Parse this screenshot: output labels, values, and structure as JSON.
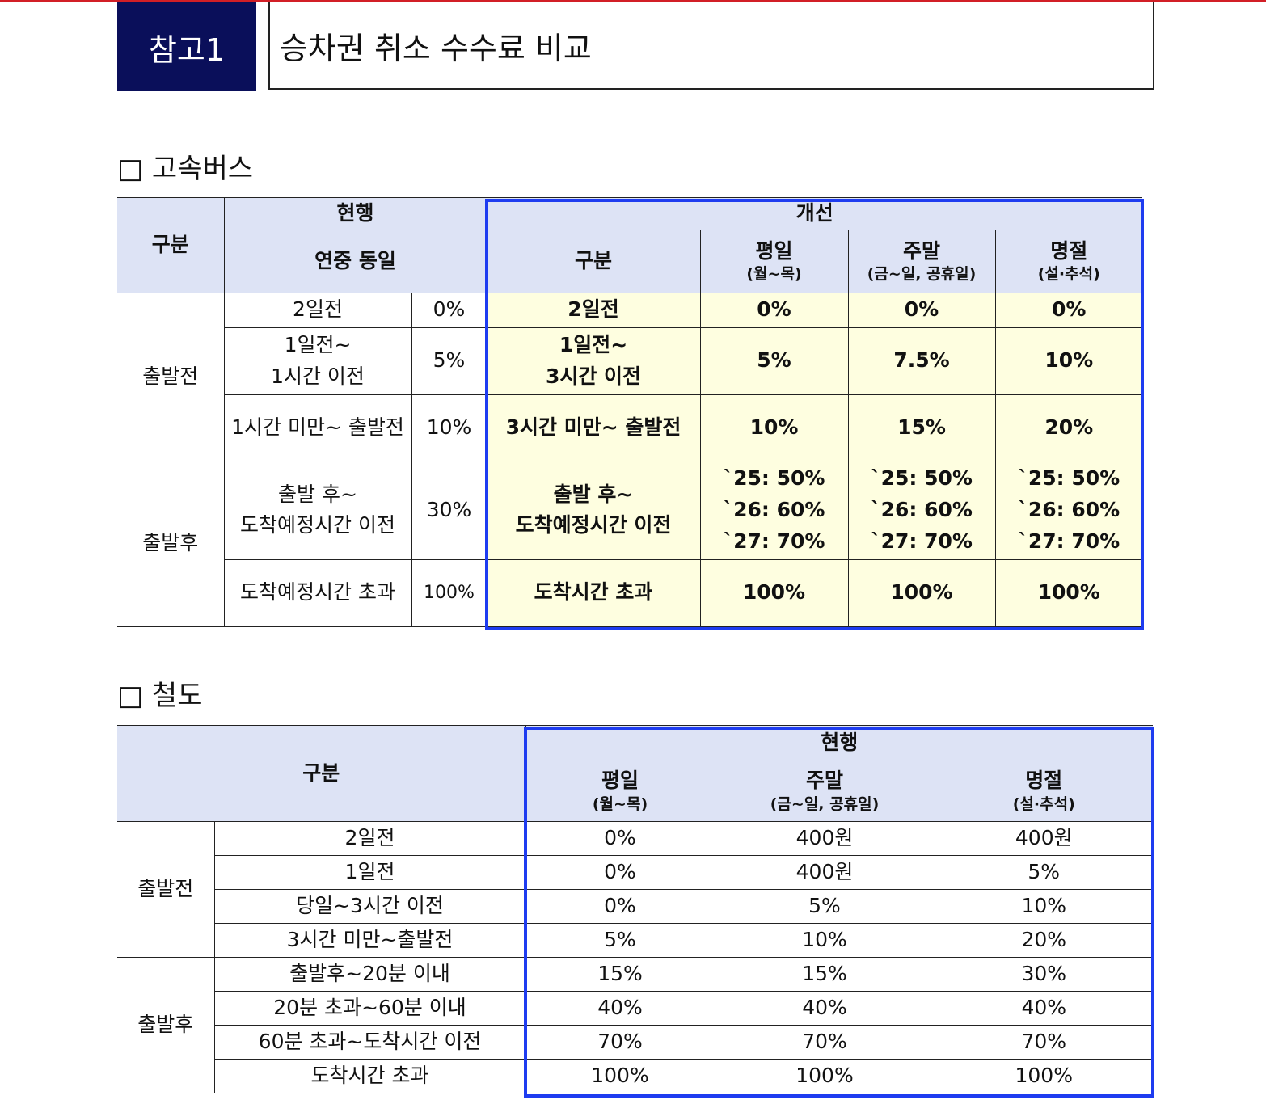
{
  "header": {
    "label": "참고1",
    "title": "승차권 취소 수수료 비교"
  },
  "bus": {
    "heading": "□ 고속버스",
    "header": {
      "category": "구분",
      "current": "현행",
      "current_sub": "연중 동일",
      "improved": "개선",
      "improved_category": "구분",
      "columns": [
        {
          "name": "평일",
          "sub": "(월~목)"
        },
        {
          "name": "주말",
          "sub": "(금~일, 공휴일)"
        },
        {
          "name": "명절",
          "sub": "(설·추석)"
        }
      ]
    },
    "groups": [
      {
        "label": "출발전",
        "rows": [
          [
            "2일전",
            "0%",
            "2일전",
            "0%",
            "0%",
            "0%"
          ],
          [
            "1일전~\n1시간 이전",
            "5%",
            "1일전~\n3시간 이전",
            "5%",
            "7.5%",
            "10%"
          ],
          [
            "1시간 미만~ 출발전",
            "10%",
            "3시간 미만~ 출발전",
            "10%",
            "15%",
            "20%"
          ]
        ]
      },
      {
        "label": "출발후",
        "rows": [
          [
            "출발 후~\n도착예정시간 이전",
            "30%",
            "출발 후~\n도착예정시간 이전",
            "`25: 50%\n`26: 60%\n`27: 70%",
            "`25: 50%\n`26: 60%\n`27: 70%",
            "`25: 50%\n`26: 60%\n`27: 70%"
          ],
          [
            "도착예정시간 초과",
            "100%",
            "도착시간 초과",
            "100%",
            "100%",
            "100%"
          ]
        ]
      }
    ]
  },
  "rail": {
    "heading": "□ 철도",
    "header": {
      "category": "구분",
      "current": "현행",
      "columns": [
        {
          "name": "평일",
          "sub": "(월~목)"
        },
        {
          "name": "주말",
          "sub": "(금~일, 공휴일)"
        },
        {
          "name": "명절",
          "sub": "(설·추석)"
        }
      ]
    },
    "groups": [
      {
        "label": "출발전",
        "rows": [
          [
            "2일전",
            "0%",
            "400원",
            "400원"
          ],
          [
            "1일전",
            "0%",
            "400원",
            "5%"
          ],
          [
            "당일~3시간 이전",
            "0%",
            "5%",
            "10%"
          ],
          [
            "3시간 미만~출발전",
            "5%",
            "10%",
            "20%"
          ]
        ]
      },
      {
        "label": "출발후",
        "rows": [
          [
            "출발후~20분 이내",
            "15%",
            "15%",
            "30%"
          ],
          [
            "20분 초과~60분 이내",
            "40%",
            "40%",
            "40%"
          ],
          [
            "60분 초과~도착시간 이전",
            "70%",
            "70%",
            "70%"
          ],
          [
            "도착시간 초과",
            "100%",
            "100%",
            "100%"
          ]
        ]
      }
    ]
  }
}
